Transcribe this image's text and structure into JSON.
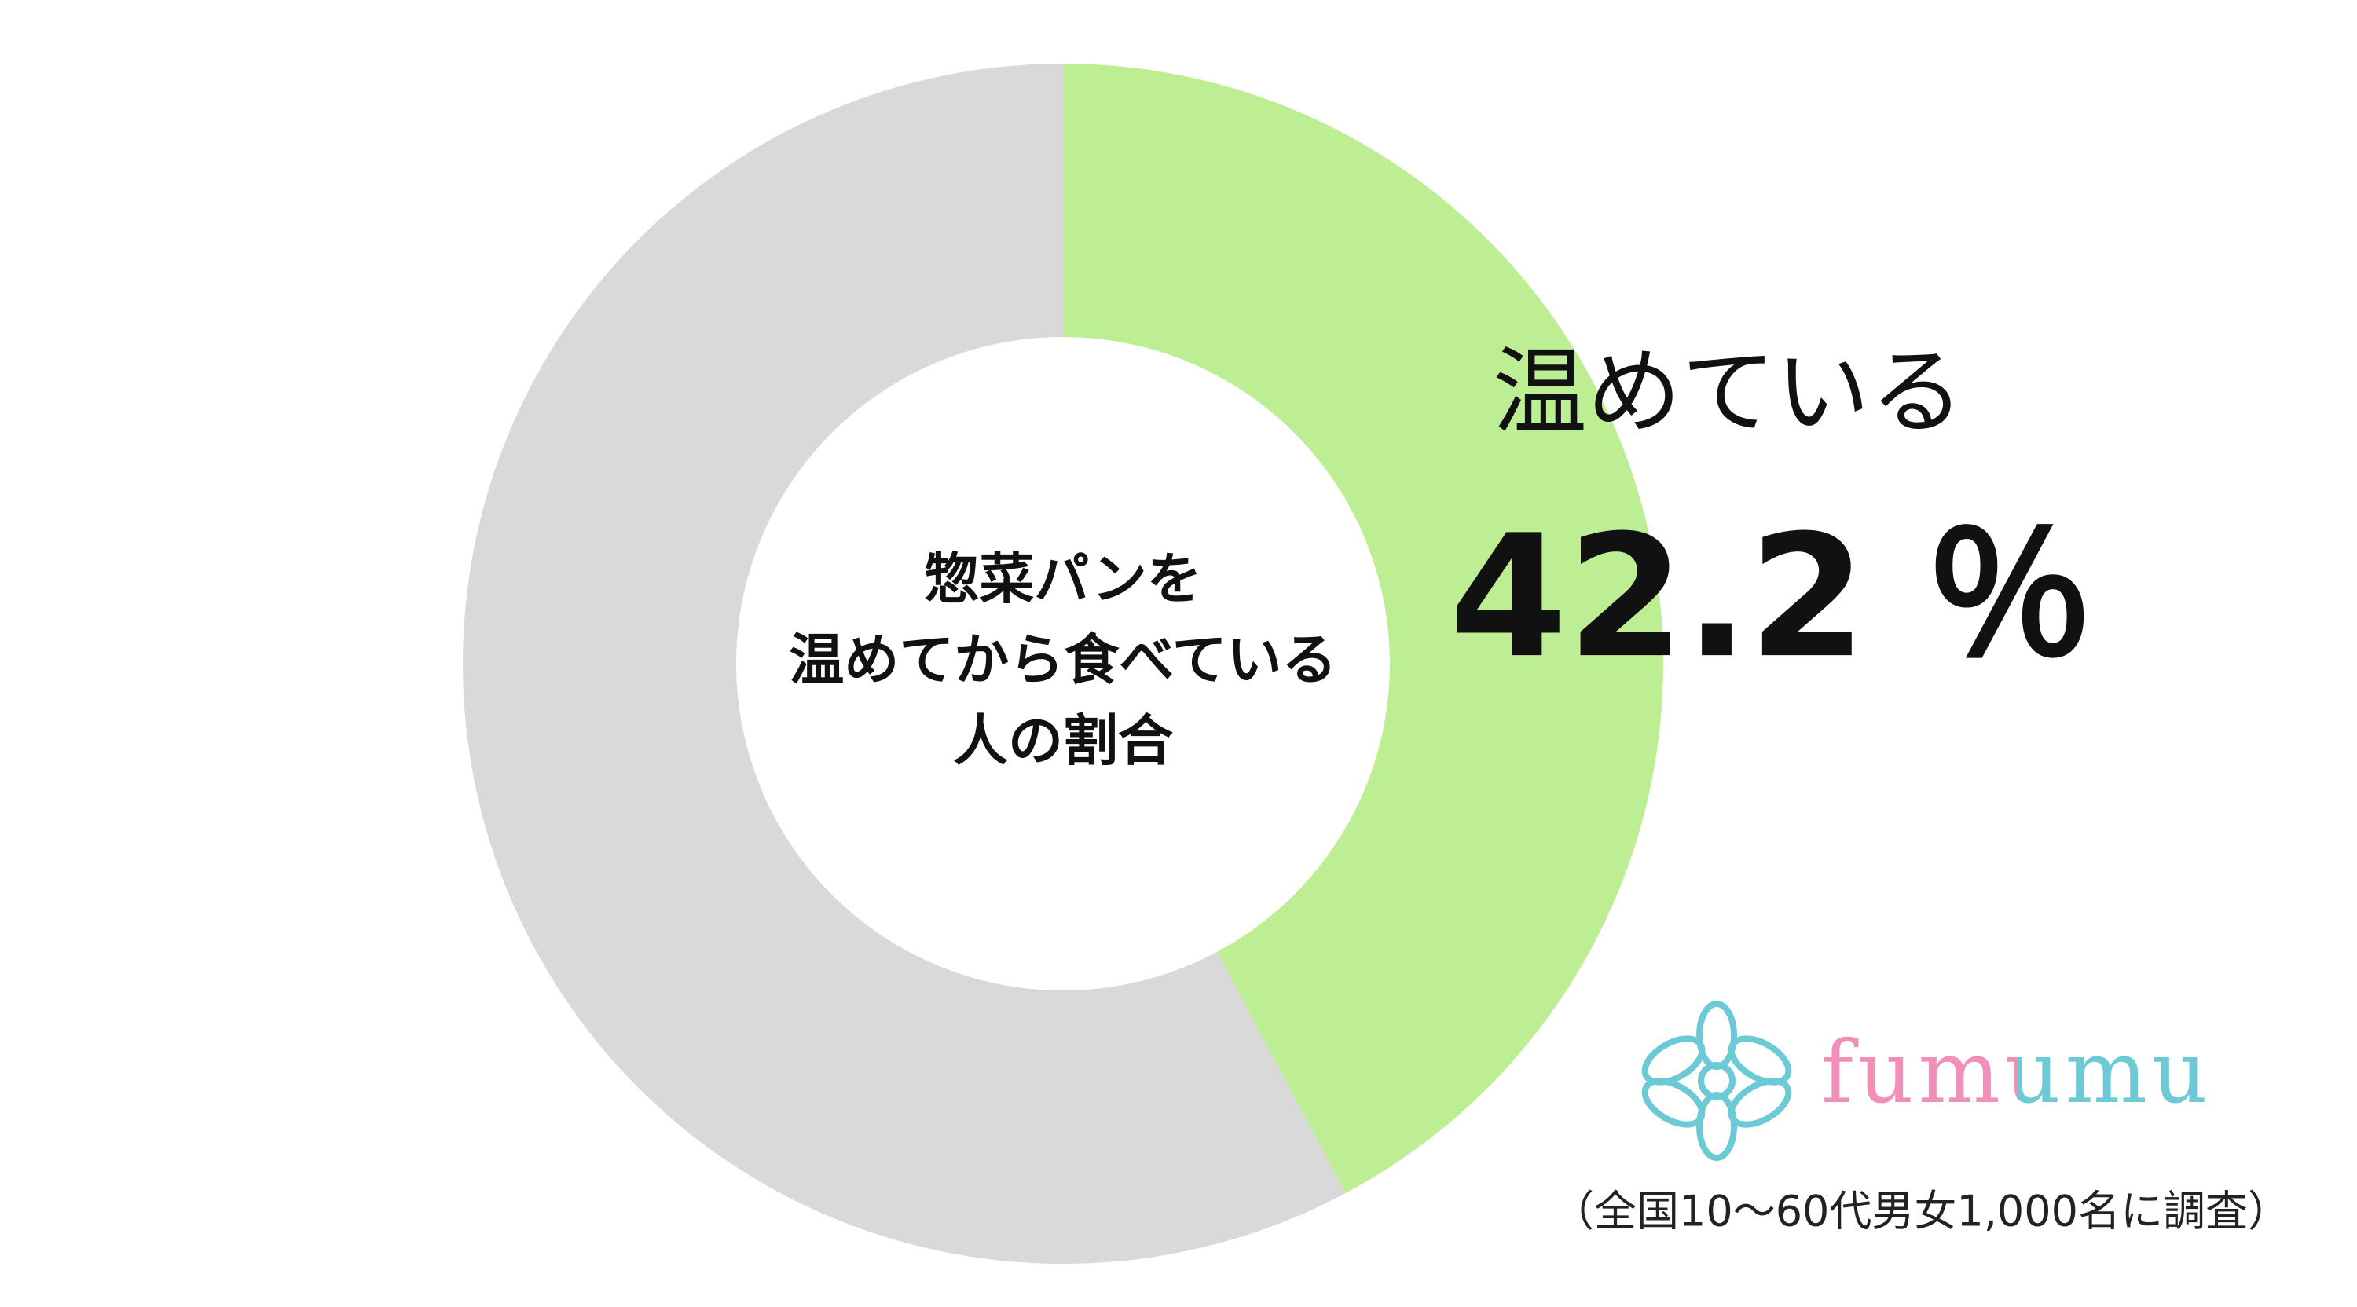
{
  "chart_data": {
    "type": "donut",
    "title": [
      "惣菜パンを",
      "温めてから食べている",
      "人の割合"
    ],
    "categories": [
      "温めている",
      null
    ],
    "values": [
      42.2,
      57.8
    ],
    "value_labels": [
      "42.2 ％",
      null
    ],
    "colors": [
      "#bdee93",
      "#d9d9d9"
    ],
    "logo": "fumumu",
    "note": "（全国10～60代男女1,000名に調査）"
  }
}
